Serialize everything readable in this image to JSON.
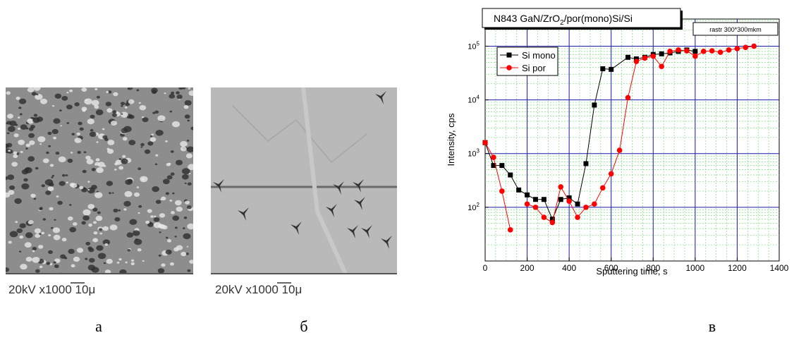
{
  "panels": [
    {
      "caption": [
        "20kV x1000 ",
        "10",
        "μ"
      ],
      "label": "а"
    },
    {
      "caption": [
        "20kV x1000 ",
        "10",
        "μ"
      ],
      "label": "б"
    }
  ],
  "chart_label": "в",
  "chart_data": {
    "type": "line",
    "title_parts": [
      "N843 GaN/ZrO",
      "2",
      "/por(mono)Si/Si"
    ],
    "annotation": "rastr 300*300mkm",
    "x_label": "Sputtering time, s",
    "y_label": "Intensity, cps",
    "xlim": [
      0,
      1400
    ],
    "xticks": [
      0,
      200,
      400,
      600,
      800,
      1000,
      1200,
      1400
    ],
    "ylim": [
      10,
      320000
    ],
    "log_y": true,
    "yticks": [
      {
        "value": 100,
        "label": "10",
        "exponent": "2"
      },
      {
        "value": 1000,
        "label": "10",
        "exponent": "3"
      },
      {
        "value": 10000,
        "label": "10",
        "exponent": "4"
      },
      {
        "value": 100000,
        "label": "10",
        "exponent": "5"
      }
    ],
    "grid": true,
    "legend": "upper left",
    "series": [
      {
        "name": "Si mono",
        "color": "#000000",
        "marker": "square",
        "x": [
          0,
          40,
          80,
          120,
          160,
          200,
          240,
          280,
          320,
          360,
          400,
          440,
          480,
          520,
          560,
          600,
          680,
          720,
          760,
          800,
          840,
          880,
          920,
          960,
          1000
        ],
        "values": [
          1600,
          600,
          600,
          400,
          210,
          170,
          140,
          140,
          60,
          140,
          150,
          115,
          650,
          8000,
          38000,
          37000,
          62000,
          58000,
          62000,
          70000,
          72000,
          75000,
          80000,
          85000,
          80000
        ]
      },
      {
        "name": "Si por",
        "color": "#ff0000",
        "marker": "circle",
        "x": [
          0,
          40,
          80,
          120,
          160,
          200,
          240,
          280,
          320,
          360,
          400,
          440,
          480,
          520,
          560,
          600,
          640,
          680,
          720,
          760,
          800,
          840,
          880,
          920,
          960,
          1000,
          1040,
          1080,
          1120,
          1160,
          1200,
          1240,
          1280
        ],
        "values": [
          1600,
          850,
          200,
          38,
          null,
          115,
          100,
          65,
          52,
          240,
          130,
          65,
          100,
          115,
          230,
          420,
          1150,
          11000,
          52000,
          60000,
          65000,
          42000,
          80000,
          85000,
          82000,
          65000,
          80000,
          82000,
          77000,
          85000,
          90000,
          95000,
          100000
        ]
      }
    ]
  }
}
